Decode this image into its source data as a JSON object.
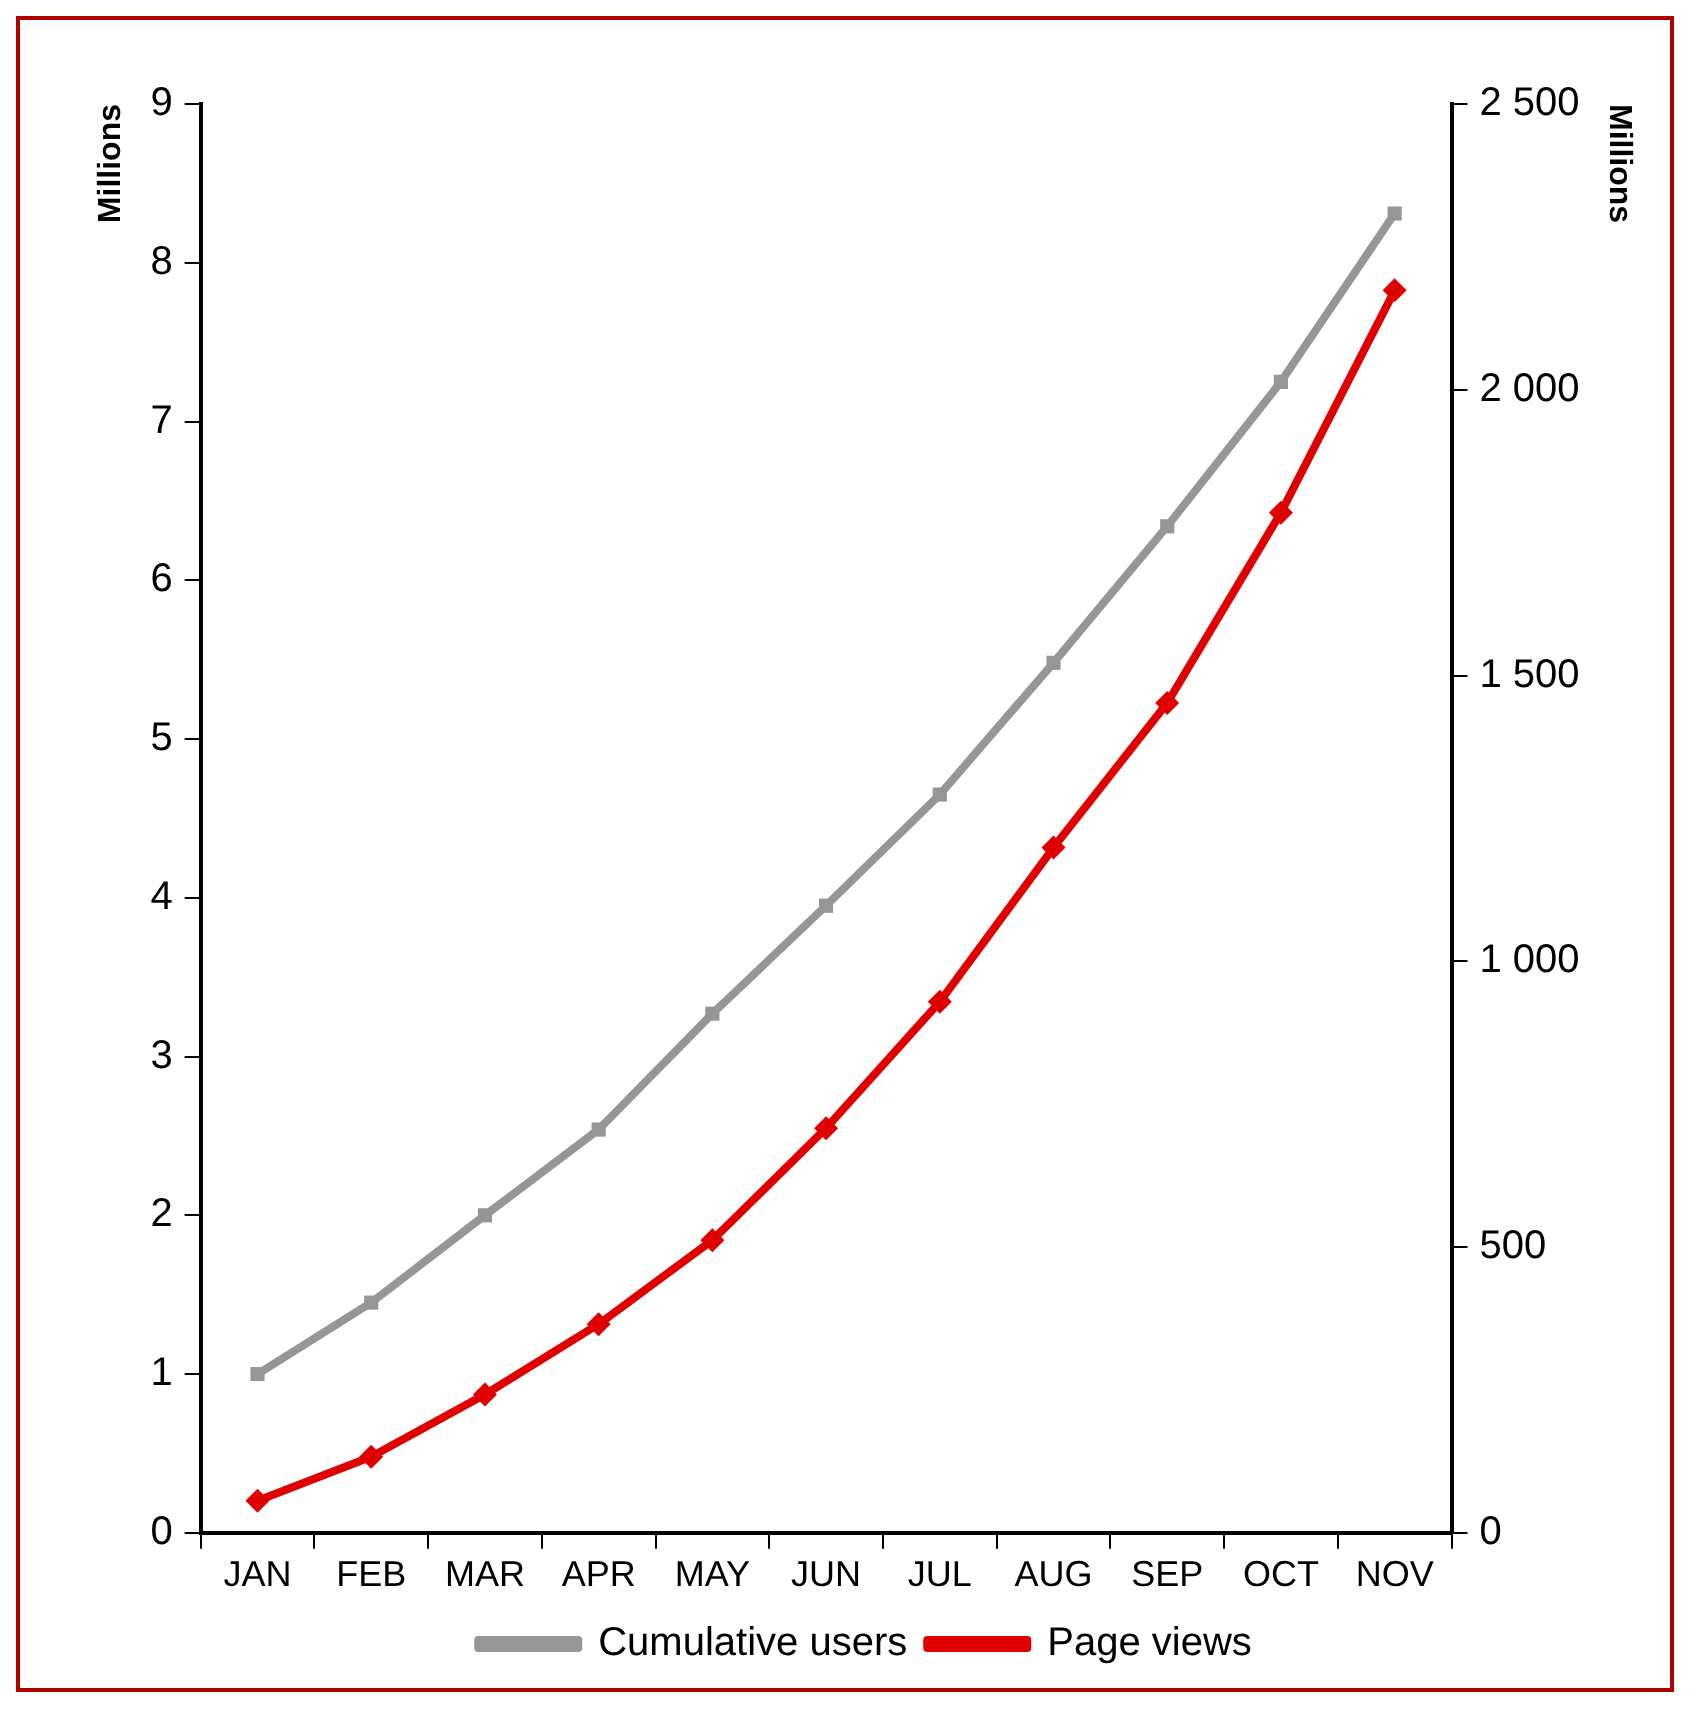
{
  "chart_data": {
    "type": "line",
    "ylabel": "Millions",
    "y2label": "Millions",
    "categories": [
      "JAN",
      "FEB",
      "MAR",
      "APR",
      "MAY",
      "JUN",
      "JUL",
      "AUG",
      "SEP",
      "OCT",
      "NOV"
    ],
    "series": [
      {
        "name": "Cumulative users",
        "color": "#969696",
        "marker": "square",
        "values": [
          1.0,
          1.45,
          2.0,
          2.54,
          3.27,
          3.95,
          4.65,
          5.48,
          6.34,
          7.25,
          8.31
        ]
      },
      {
        "name": "Page views",
        "color": "#e00000",
        "marker": "diamond",
        "axis": "y2",
        "values": [
          56,
          133,
          242,
          365,
          512,
          708,
          929,
          1199,
          1452,
          1785,
          2174
        ]
      }
    ],
    "ylim": [
      0,
      9
    ],
    "yticks": [
      0,
      1,
      2,
      3,
      4,
      5,
      6,
      7,
      8,
      9
    ],
    "y2lim": [
      0,
      2500
    ],
    "y2ticks": [
      0,
      500,
      {
        "value": 1000,
        "label": "1 000"
      },
      {
        "value": 1500,
        "label": "1 500"
      },
      {
        "value": 2000,
        "label": "2 000"
      },
      {
        "value": 2500,
        "label": "2 500"
      }
    ],
    "grid": false,
    "legend": "bottom",
    "line_style": "solid"
  }
}
